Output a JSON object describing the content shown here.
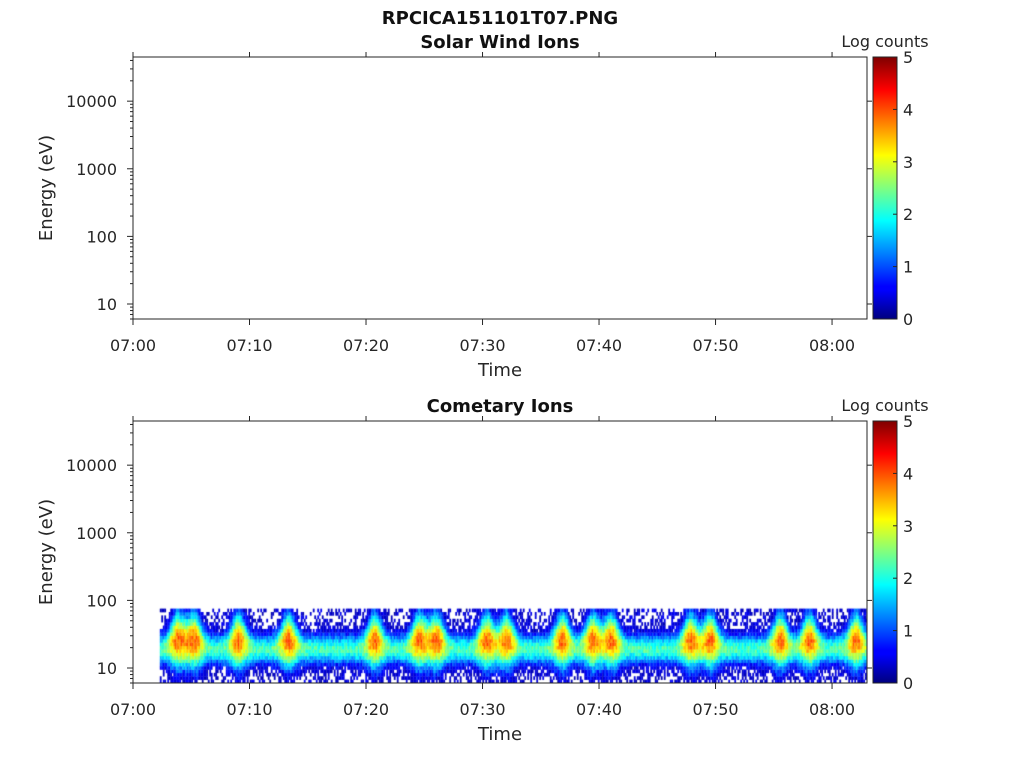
{
  "figure": {
    "title": "RPCICA151101T07.PNG"
  },
  "chart_data": [
    {
      "type": "heatmap",
      "title": "Solar Wind Ions",
      "xlabel": "Time",
      "ylabel": "Energy (eV)",
      "x_ticks": [
        "07:00",
        "07:10",
        "07:20",
        "07:30",
        "07:40",
        "07:50",
        "08:00"
      ],
      "x_range_minutes": [
        0,
        63
      ],
      "y_scale": "log",
      "y_ticks": [
        "10",
        "100",
        "1000",
        "10000"
      ],
      "y_range": [
        6,
        45000
      ],
      "colorbar": {
        "label": "Log counts",
        "ticks": [
          "0",
          "1",
          "2",
          "3",
          "4",
          "5"
        ],
        "range": [
          0,
          5
        ],
        "colormap": "jet"
      },
      "data_present": false
    },
    {
      "type": "heatmap",
      "title": "Cometary Ions",
      "xlabel": "Time",
      "ylabel": "Energy (eV)",
      "x_ticks": [
        "07:00",
        "07:10",
        "07:20",
        "07:30",
        "07:40",
        "07:50",
        "08:00"
      ],
      "x_range_minutes": [
        0,
        63
      ],
      "y_scale": "log",
      "y_ticks": [
        "10",
        "100",
        "1000",
        "10000"
      ],
      "y_range": [
        6,
        45000
      ],
      "colorbar": {
        "label": "Log counts",
        "ticks": [
          "0",
          "1",
          "2",
          "3",
          "4",
          "5"
        ],
        "range": [
          0,
          5
        ],
        "colormap": "jet"
      },
      "data_present": true,
      "data_start_minute": 2.3,
      "max_energy_eV": 80,
      "band_center_eV": 18,
      "peak_log_counts": 3.9,
      "enhancements_minute": [
        3.8,
        5.2,
        9.0,
        13.3,
        20.7,
        24.5,
        26.0,
        30.3,
        32.0,
        36.8,
        39.4,
        41.0,
        47.8,
        49.5,
        55.5,
        58.0,
        62.0
      ]
    }
  ]
}
